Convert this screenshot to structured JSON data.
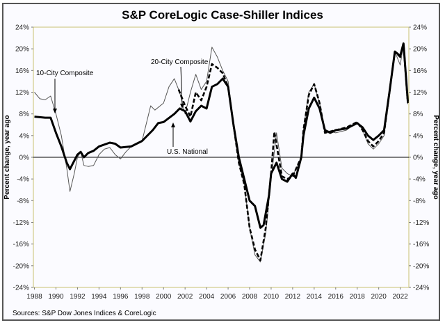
{
  "chart_data": {
    "type": "line",
    "title": "S&P CoreLogic Case-Shiller Indices",
    "ylabel": "Percent change, year ago",
    "ylabel_right": "Percent change, year ago",
    "xlim": [
      1987.9,
      2022.8
    ],
    "ylim": [
      -24,
      24
    ],
    "x_ticks": [
      "1988",
      "1990",
      "1992",
      "1994",
      "1996",
      "1998",
      "2000",
      "2002",
      "2004",
      "2006",
      "2008",
      "2010",
      "2012",
      "2014",
      "2016",
      "2018",
      "2020",
      "2022"
    ],
    "y_ticks": [
      "24%",
      "20%",
      "16%",
      "12%",
      "8%",
      "4%",
      "0%",
      "-4%",
      "-8%",
      "-12%",
      "-16%",
      "-20%",
      "-24%"
    ],
    "grid": false,
    "zero_line": true,
    "annotations": [
      {
        "text": "10-City Composite",
        "series": "10-City Composite"
      },
      {
        "text": "20-City Composite",
        "series": "20-City Composite"
      },
      {
        "text": "U.S. National",
        "series": "U.S. National"
      }
    ],
    "source": "Sources: S&P Dow Jones Indices & CoreLogic",
    "series": [
      {
        "name": "10-City Composite",
        "color": "#555555",
        "style": "thin",
        "points": [
          [
            1988,
            12
          ],
          [
            1988.5,
            10.8
          ],
          [
            1989,
            10.6
          ],
          [
            1989.5,
            11.3
          ],
          [
            1990,
            8
          ],
          [
            1990.5,
            4
          ],
          [
            1991,
            -2
          ],
          [
            1991.3,
            -6.3
          ],
          [
            1991.7,
            -3
          ],
          [
            1992,
            0
          ],
          [
            1992.3,
            1
          ],
          [
            1992.6,
            -1.5
          ],
          [
            1993,
            -1.7
          ],
          [
            1993.5,
            -1.5
          ],
          [
            1994,
            0.5
          ],
          [
            1994.5,
            1.5
          ],
          [
            1995,
            1.8
          ],
          [
            1995.5,
            0.5
          ],
          [
            1996,
            -0.3
          ],
          [
            1996.5,
            1
          ],
          [
            1997,
            2
          ],
          [
            1998,
            3
          ],
          [
            1998.8,
            9.5
          ],
          [
            1999.2,
            8.7
          ],
          [
            2000,
            10
          ],
          [
            2000.5,
            13
          ],
          [
            2001,
            14.5
          ],
          [
            2001.5,
            12
          ],
          [
            2002,
            8
          ],
          [
            2002.5,
            12
          ],
          [
            2003,
            15.3
          ],
          [
            2003.5,
            12.5
          ],
          [
            2004,
            14
          ],
          [
            2004.5,
            20.3
          ],
          [
            2005,
            18.5
          ],
          [
            2005.5,
            16
          ],
          [
            2006,
            14
          ],
          [
            2006.5,
            6
          ],
          [
            2007,
            -1
          ],
          [
            2007.5,
            -5
          ],
          [
            2008,
            -13
          ],
          [
            2008.5,
            -18
          ],
          [
            2009,
            -19.3
          ],
          [
            2009.5,
            -14
          ],
          [
            2010,
            -4
          ],
          [
            2010.5,
            4.5
          ],
          [
            2011,
            -2
          ],
          [
            2011.5,
            -3
          ],
          [
            2012,
            -3.5
          ],
          [
            2012.8,
            0
          ],
          [
            2013,
            5
          ],
          [
            2013.5,
            12
          ],
          [
            2014,
            13.5
          ],
          [
            2014.5,
            10
          ],
          [
            2015,
            5
          ],
          [
            2016,
            4.5
          ],
          [
            2017,
            5
          ],
          [
            2018,
            6.5
          ],
          [
            2018.5,
            5
          ],
          [
            2019,
            2.5
          ],
          [
            2019.5,
            1.5
          ],
          [
            2020,
            2.5
          ],
          [
            2020.5,
            4
          ],
          [
            2021,
            12
          ],
          [
            2021.5,
            19.5
          ],
          [
            2022,
            17
          ],
          [
            2022.3,
            20.8
          ],
          [
            2022.7,
            9.8
          ]
        ]
      },
      {
        "name": "20-City Composite",
        "color": "#000000",
        "style": "dashed",
        "points": [
          [
            2001.4,
            12.5
          ],
          [
            2002,
            9.5
          ],
          [
            2002.5,
            7.5
          ],
          [
            2003,
            12
          ],
          [
            2003.5,
            10.5
          ],
          [
            2004,
            13
          ],
          [
            2004.5,
            17.2
          ],
          [
            2005,
            16.5
          ],
          [
            2005.5,
            15.5
          ],
          [
            2006,
            13
          ],
          [
            2006.5,
            6
          ],
          [
            2007,
            -1
          ],
          [
            2007.5,
            -5
          ],
          [
            2008,
            -13
          ],
          [
            2008.5,
            -17
          ],
          [
            2009,
            -19
          ],
          [
            2009.5,
            -13
          ],
          [
            2010,
            -3
          ],
          [
            2010.3,
            4.7
          ],
          [
            2010.7,
            0
          ],
          [
            2011,
            -3.5
          ],
          [
            2011.5,
            -4
          ],
          [
            2012,
            -3.5
          ],
          [
            2012.8,
            0
          ],
          [
            2013,
            5
          ],
          [
            2013.5,
            11.5
          ],
          [
            2014,
            13.5
          ],
          [
            2014.5,
            10
          ],
          [
            2015,
            4.5
          ],
          [
            2016,
            5
          ],
          [
            2017,
            5.5
          ],
          [
            2018,
            6.5
          ],
          [
            2018.5,
            5
          ],
          [
            2019,
            3
          ],
          [
            2019.5,
            2
          ],
          [
            2020,
            3
          ],
          [
            2020.5,
            4.5
          ],
          [
            2021,
            12
          ],
          [
            2021.5,
            19.5
          ],
          [
            2022,
            18.5
          ],
          [
            2022.3,
            21
          ],
          [
            2022.7,
            10
          ]
        ]
      },
      {
        "name": "U.S. National",
        "color": "#000000",
        "style": "thick",
        "points": [
          [
            1988,
            7.5
          ],
          [
            1989,
            7.3
          ],
          [
            1989.5,
            7.3
          ],
          [
            1990,
            4.5
          ],
          [
            1990.5,
            2
          ],
          [
            1991,
            -1
          ],
          [
            1991.3,
            -2.2
          ],
          [
            1992,
            0.5
          ],
          [
            1992.3,
            1
          ],
          [
            1992.6,
            0
          ],
          [
            1993,
            0.8
          ],
          [
            1993.5,
            1.2
          ],
          [
            1994,
            2
          ],
          [
            1995,
            2.7
          ],
          [
            1995.5,
            2.5
          ],
          [
            1996,
            1.8
          ],
          [
            1997,
            2
          ],
          [
            1997.5,
            2.5
          ],
          [
            1998,
            3
          ],
          [
            1999,
            5
          ],
          [
            1999.5,
            6.3
          ],
          [
            2000,
            6.5
          ],
          [
            2001,
            8
          ],
          [
            2001.5,
            9
          ],
          [
            2002,
            8.5
          ],
          [
            2002.5,
            6.6
          ],
          [
            2003,
            8.5
          ],
          [
            2003.5,
            9.5
          ],
          [
            2004,
            9
          ],
          [
            2004.5,
            13
          ],
          [
            2005,
            13.5
          ],
          [
            2005.5,
            14.5
          ],
          [
            2006,
            13
          ],
          [
            2006.5,
            6
          ],
          [
            2007,
            0
          ],
          [
            2007.5,
            -4
          ],
          [
            2008,
            -8
          ],
          [
            2008.5,
            -9
          ],
          [
            2009,
            -13
          ],
          [
            2009.3,
            -12.5
          ],
          [
            2009.8,
            -7
          ],
          [
            2010,
            -3
          ],
          [
            2010.5,
            -1
          ],
          [
            2011,
            -4
          ],
          [
            2011.5,
            -4.5
          ],
          [
            2012,
            -3
          ],
          [
            2012.3,
            -3.8
          ],
          [
            2012.8,
            0
          ],
          [
            2013,
            4
          ],
          [
            2013.5,
            9
          ],
          [
            2014,
            11
          ],
          [
            2014.5,
            9
          ],
          [
            2015,
            5
          ],
          [
            2015.5,
            4.5
          ],
          [
            2016,
            5
          ],
          [
            2017,
            5.3
          ],
          [
            2017.5,
            5.8
          ],
          [
            2018,
            6.3
          ],
          [
            2018.5,
            5.5
          ],
          [
            2019,
            4
          ],
          [
            2019.5,
            3.2
          ],
          [
            2020,
            4
          ],
          [
            2020.5,
            5
          ],
          [
            2021,
            12
          ],
          [
            2021.5,
            19.5
          ],
          [
            2022,
            18.7
          ],
          [
            2022.3,
            21
          ],
          [
            2022.7,
            10.3
          ]
        ]
      }
    ]
  }
}
